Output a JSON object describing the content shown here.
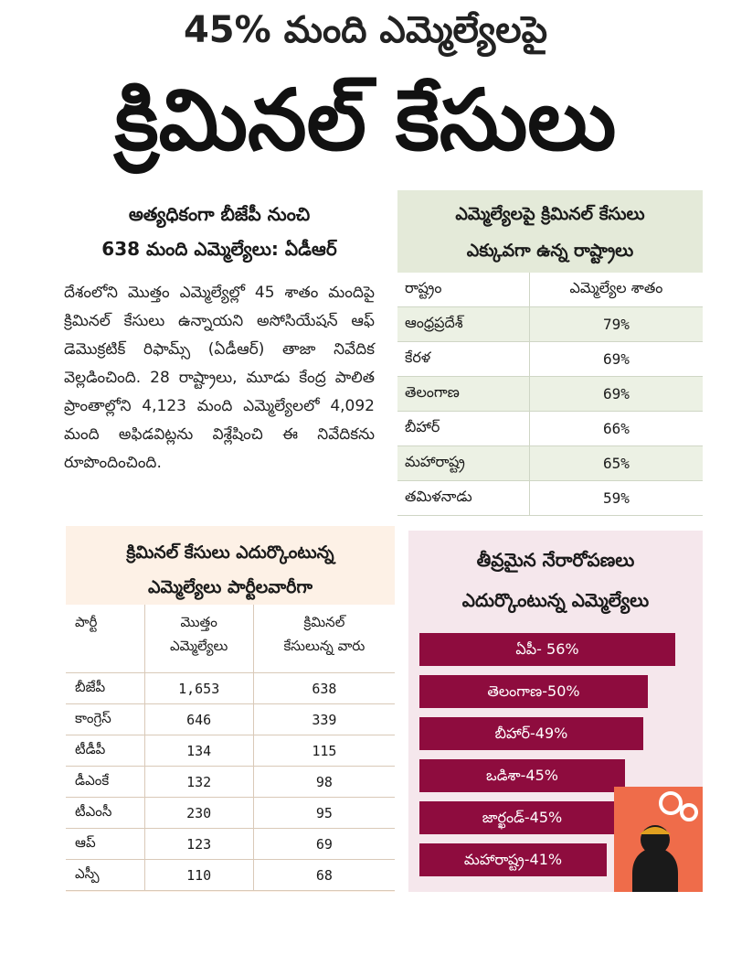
{
  "headline": {
    "line1": "45% మంది ఎమ్మెల్యేలపై",
    "line2": "క్రిమినల్ కేసులు"
  },
  "article": {
    "subhead_line1": "అత్యధికంగా బీజేపీ నుంచి",
    "subhead_line2": "638 మంది ఎమ్మెల్యేలు: ఏడీఆర్",
    "body": "దేశంలోని మొత్తం ఎమ్మెల్యేల్లో 45 శాతం మందిపై క్రిమినల్ కేసులు ఉన్నాయని అసోసియేషన్ ఆఫ్ డెమొక్రటిక్ రిఫామ్స్ (ఏడీఆర్) తాజా నివేదిక వెల్లడించింది. 28 రాష్ట్రాలు, మూడు కేంద్ర పాలిత ప్రాంతాల్లోని 4,123 మంది ఎమ్మెల్యేలలో 4,092 మంది అఫిడవిట్లను విశ్లేషించి ఈ నివేదికను రూపొందించింది."
  },
  "states_box": {
    "title_line1": "ఎమ్మెల్యేలపై క్రిమినల్ కేసులు",
    "title_line2": "ఎక్కువగా ఉన్న రాష్ట్రాలు",
    "col_state": "రాష్ట్రం",
    "col_pct": "ఎమ్మెల్యేల శాతం",
    "rows": [
      {
        "state": "ఆంధ్రప్రదేశ్",
        "pct": "79%"
      },
      {
        "state": "కేరళ",
        "pct": "69%"
      },
      {
        "state": "తెలంగాణ",
        "pct": "69%"
      },
      {
        "state": "బీహార్",
        "pct": "66%"
      },
      {
        "state": "మహారాష్ట్ర",
        "pct": "65%"
      },
      {
        "state": "తమిళనాడు",
        "pct": "59%"
      }
    ]
  },
  "party_box": {
    "title_line1": "క్రిమినల్ కేసులు ఎదుర్కొంటున్న",
    "title_line2": "ఎమ్మెల్యేలు పార్టీలవారీగా",
    "col_party": "పార్టీ",
    "col_total_1": "మొత్తం",
    "col_total_2": "ఎమ్మెల్యేలు",
    "col_criminal_1": "క్రిమినల్",
    "col_criminal_2": "కేసులున్న వారు",
    "rows": [
      {
        "party": "బీజేపీ",
        "total": "1,653",
        "criminal": "638"
      },
      {
        "party": "కాంగ్రెస్",
        "total": "646",
        "criminal": "339"
      },
      {
        "party": "టీడీపీ",
        "total": "134",
        "criminal": "115"
      },
      {
        "party": "డీఎంకే",
        "total": "132",
        "criminal": "98"
      },
      {
        "party": "టీఎంసీ",
        "total": "230",
        "criminal": "95"
      },
      {
        "party": "ఆప్",
        "total": "123",
        "criminal": "69"
      },
      {
        "party": "ఎస్పీ",
        "total": "110",
        "criminal": "68"
      }
    ]
  },
  "serious_box": {
    "title_line1": "తీవ్రమైన నేరారోపణలు",
    "title_line2": "ఎదుర్కొంటున్న ఎమ్మెల్యేలు",
    "bars": [
      {
        "label": "ఏపీ- 56%",
        "value": 56
      },
      {
        "label": "తెలంగాణ-50%",
        "value": 50
      },
      {
        "label": "బీహార్-49%",
        "value": 49
      },
      {
        "label": "ఒడిశా-45%",
        "value": 45
      },
      {
        "label": "జార్ఖండ్-45%",
        "value": 45
      },
      {
        "label": "మహారాష్ట్ర-41%",
        "value": 41
      }
    ],
    "bar_color": "#8e0c3e"
  },
  "colors": {
    "states_bg": "#e4ead9",
    "party_bg": "#fdf1e6",
    "serious_bg": "#f5e7ec",
    "illustration_bg": "#ef6c4a"
  }
}
